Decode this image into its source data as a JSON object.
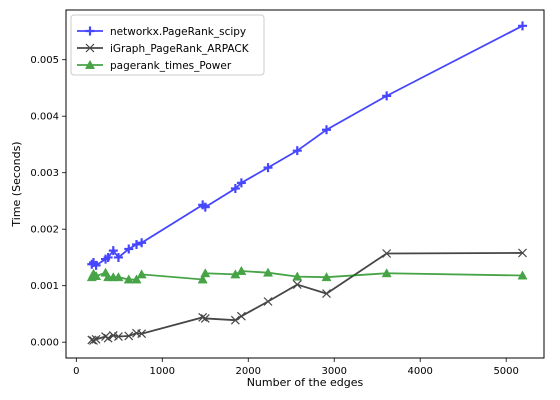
{
  "chart_data": {
    "type": "line",
    "xlabel": "Number of the edges",
    "ylabel": "Time (Seconds)",
    "xlim": [
      -120,
      5440
    ],
    "ylim": [
      -0.00028,
      0.00588
    ],
    "xticks": [
      0,
      1000,
      2000,
      3000,
      4000,
      5000
    ],
    "xtick_labels": [
      "0",
      "1000",
      "2000",
      "3000",
      "4000",
      "5000"
    ],
    "yticks": [
      0.0,
      0.001,
      0.002,
      0.003,
      0.004,
      0.005
    ],
    "ytick_labels": [
      "0.000",
      "0.001",
      "0.002",
      "0.003",
      "0.004",
      "0.005"
    ],
    "grid": false,
    "legend_position": "top-left",
    "series": [
      {
        "name": "networkx.PageRank_scipy",
        "color": "#0000ff",
        "marker": "plus",
        "x": [
          180,
          200,
          230,
          340,
          370,
          430,
          490,
          610,
          700,
          760,
          1470,
          1500,
          1850,
          1920,
          2230,
          2570,
          2910,
          3610,
          5190
        ],
        "y": [
          0.00138,
          0.00141,
          0.00136,
          0.00147,
          0.0015,
          0.00162,
          0.0015,
          0.00165,
          0.00173,
          0.00176,
          0.00243,
          0.00239,
          0.00272,
          0.00282,
          0.00309,
          0.00339,
          0.00376,
          0.00436,
          0.0056
        ]
      },
      {
        "name": "iGraph_PageRank_ARPACK",
        "color": "#000000",
        "marker": "x",
        "x": [
          180,
          200,
          230,
          340,
          370,
          430,
          490,
          610,
          700,
          760,
          1470,
          1500,
          1850,
          1920,
          2230,
          2570,
          2910,
          3610,
          5190
        ],
        "y": [
          4e-05,
          3e-05,
          5e-05,
          0.0001,
          7e-05,
          0.00012,
          0.0001,
          0.00011,
          0.00016,
          0.00015,
          0.00044,
          0.00042,
          0.00039,
          0.00046,
          0.00072,
          0.00102,
          0.00086,
          0.00157,
          0.00158
        ]
      },
      {
        "name": "pagerank_times_Power",
        "color": "#008000",
        "marker": "triangle",
        "x": [
          180,
          200,
          230,
          340,
          370,
          430,
          490,
          610,
          700,
          760,
          1470,
          1500,
          1850,
          1920,
          2230,
          2570,
          2910,
          3610,
          5190
        ],
        "y": [
          0.00115,
          0.00121,
          0.00117,
          0.00123,
          0.00115,
          0.00115,
          0.00115,
          0.00111,
          0.00111,
          0.0012,
          0.00111,
          0.00122,
          0.0012,
          0.00126,
          0.00123,
          0.00116,
          0.00115,
          0.00122,
          0.00118
        ]
      }
    ]
  }
}
